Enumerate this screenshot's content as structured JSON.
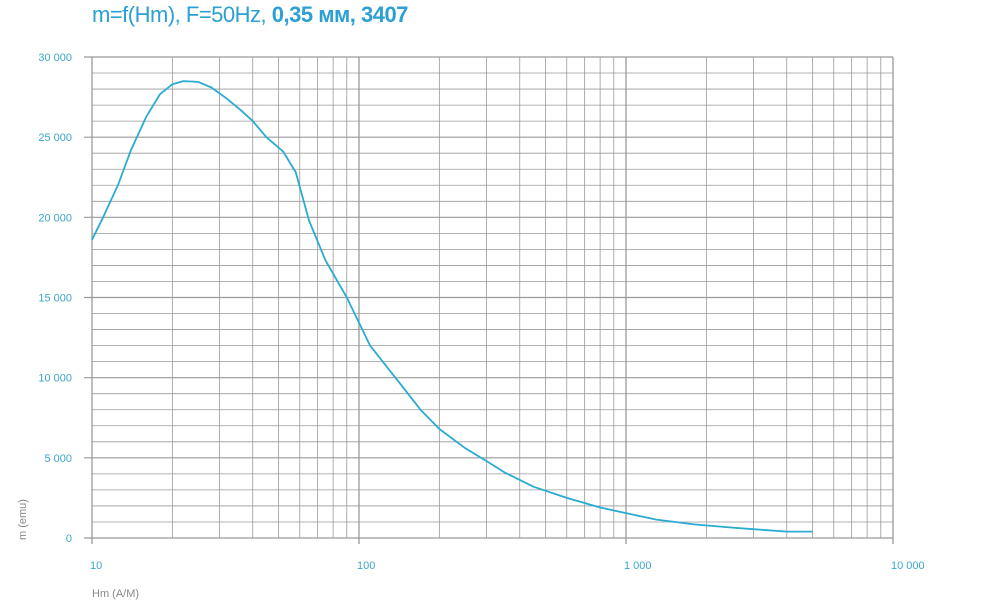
{
  "chart_data": {
    "type": "line",
    "title": "m=f(Hm), F=50Hz,",
    "title_bold": "0,35 мм, 3407",
    "xlabel": "Hm (A/M)",
    "ylabel": "m (emu)",
    "xscale": "log",
    "xlim": [
      10,
      10000
    ],
    "ylim": [
      0,
      30000
    ],
    "grid": true,
    "xticks": [
      {
        "v": 10,
        "label": "10"
      },
      {
        "v": 100,
        "label": "100"
      },
      {
        "v": 1000,
        "label": "1 000"
      },
      {
        "v": 10000,
        "label": "10 000"
      }
    ],
    "yticks": [
      {
        "v": 0,
        "label": "0"
      },
      {
        "v": 5000,
        "label": "5 000"
      },
      {
        "v": 10000,
        "label": "10 000"
      },
      {
        "v": 15000,
        "label": "15 000"
      },
      {
        "v": 20000,
        "label": "20 000"
      },
      {
        "v": 25000,
        "label": "25 000"
      },
      {
        "v": 30000,
        "label": "30 000"
      }
    ],
    "colors": {
      "line": "#2aabd2",
      "title": "#2aa0d4",
      "tick": "#3aa7c9",
      "grid": "#9a9a9a"
    },
    "series": [
      {
        "x": [
          10,
          11,
          12.5,
          14,
          16,
          18,
          20,
          22,
          25,
          28,
          32,
          36,
          40,
          45,
          52,
          58,
          65,
          75,
          90,
          110,
          140,
          170,
          200,
          250,
          300,
          350,
          450,
          600,
          800,
          1000,
          1300,
          1800,
          2500,
          3000,
          4000,
          5000
        ],
        "y": [
          18600,
          20000,
          22000,
          24200,
          26300,
          27700,
          28300,
          28500,
          28450,
          28100,
          27400,
          26700,
          26000,
          25000,
          24100,
          22800,
          19800,
          17300,
          15000,
          12000,
          9800,
          8000,
          6800,
          5600,
          4800,
          4100,
          3200,
          2500,
          1900,
          1550,
          1150,
          850,
          650,
          550,
          400,
          400
        ]
      }
    ]
  }
}
